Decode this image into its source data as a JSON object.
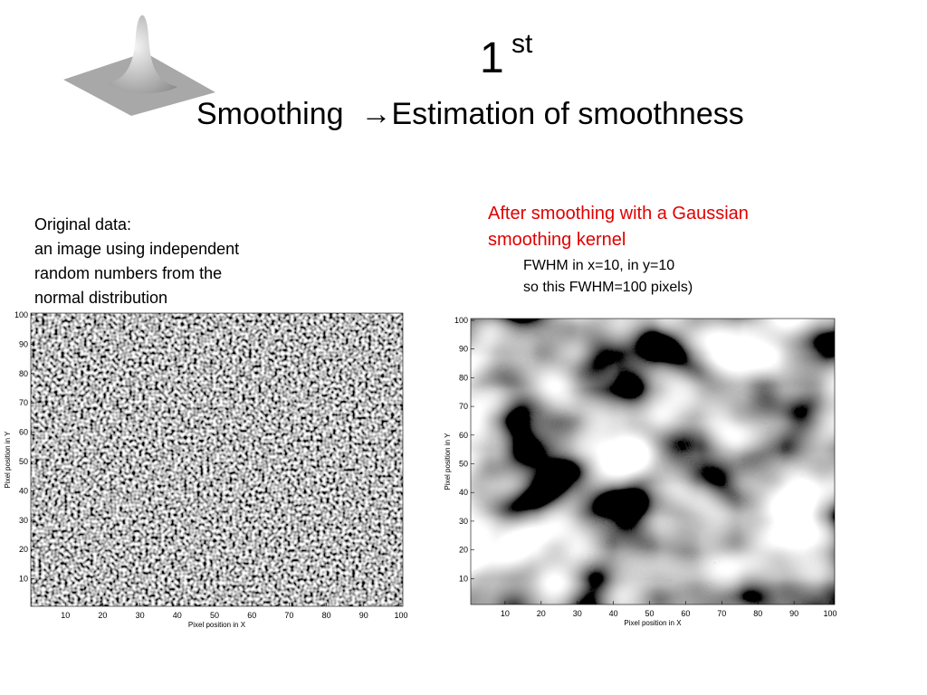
{
  "header": {
    "title": "1",
    "title_superscript": "st",
    "subtitle": "Smoothing  →Estimation of smoothness"
  },
  "panels": [
    {
      "caption": [
        "Original data:",
        "an image using independent",
        "random numbers from the",
        "normal distribution"
      ],
      "x_label": "Pixel position in X",
      "y_label": "Pixel position in Y",
      "xticks": [
        10,
        20,
        30,
        40,
        50,
        60,
        70,
        80,
        90,
        100
      ],
      "yticks": [
        10,
        20,
        30,
        40,
        50,
        60,
        70,
        80,
        90,
        100
      ]
    },
    {
      "caption": [
        "After smoothing with a Gaussian",
        "smoothing kernel"
      ],
      "note": [
        "FWHM in x=10, in y=10",
        "so this FWHM=100 pixels)"
      ],
      "x_label": "Pixel position in X",
      "y_label": "Pixel position in Y",
      "xticks": [
        10,
        20,
        30,
        40,
        50,
        60,
        70,
        80,
        90,
        100
      ],
      "yticks": [
        10,
        20,
        30,
        40,
        50,
        60,
        70,
        80,
        90,
        100
      ]
    }
  ]
}
